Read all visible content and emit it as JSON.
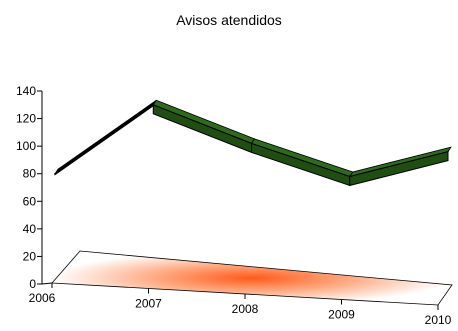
{
  "chart_data": {
    "type": "line",
    "title": "Avisos atendidos",
    "categories": [
      "2006",
      "2007",
      "2008",
      "2009",
      "2010"
    ],
    "series": [
      {
        "values": [
          80,
          130,
          102,
          78,
          96
        ]
      }
    ],
    "ylim": [
      0,
      140
    ],
    "yticks": [
      "0",
      "20",
      "40",
      "60",
      "80",
      "100",
      "120",
      "140"
    ],
    "style": "3d ribbon",
    "colors": {
      "ribbon_front": "#1f4d12",
      "ribbon_top": "#2d6a1e",
      "floor_center": "#ff5a1a",
      "floor_edge": "#ffffff"
    }
  }
}
